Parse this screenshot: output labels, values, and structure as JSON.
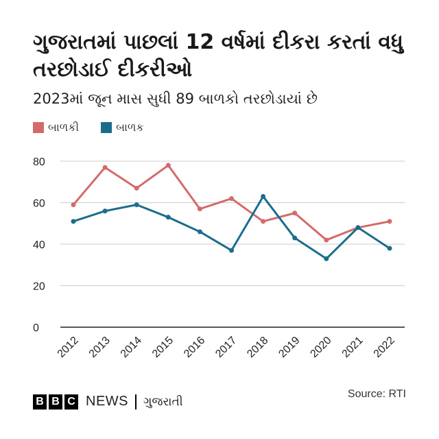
{
  "header": {
    "title": "ગુજરાતમાં પાછલાં 12 વર્ષમાં દીકરા કરતાં વધુ તરછોડાઈ દીકરીઓ",
    "subtitle": "2023માં જૂન માસ સુધી 89 બાળકો તરછોડાયાં છે"
  },
  "footer": {
    "bbc_letters": [
      "B",
      "B",
      "C"
    ],
    "news": "NEWS",
    "language": "ગુજરાતી",
    "source": "Source: RTI"
  },
  "colors": {
    "girls": "#d36b69",
    "boys": "#1b6d8c",
    "grid": "#cccccc",
    "baseline": "#222222"
  },
  "chart_data": {
    "type": "line",
    "x": [
      "2012",
      "2013",
      "2014",
      "2015",
      "2016",
      "2017",
      "2018",
      "2019",
      "2020",
      "2021",
      "2022"
    ],
    "series": [
      {
        "name": "બાળકી",
        "color": "#d36b69",
        "values": [
          59,
          77,
          67,
          78,
          57,
          62,
          51,
          55,
          42,
          48,
          51
        ]
      },
      {
        "name": "બાળક",
        "color": "#1b6d8c",
        "values": [
          51,
          56,
          59,
          53,
          46,
          37,
          63,
          43,
          33,
          48,
          38
        ]
      }
    ],
    "yticks": [
      0,
      20,
      40,
      60,
      80
    ],
    "ylim": [
      0,
      80
    ],
    "grid": true,
    "legend_position": "top-left",
    "title": "ગુજરાતમાં પાછલાં 12 વર્ષમાં દીકરા કરતાં વધુ તરછોડાઈ દીકરીઓ",
    "subtitle": "2023માં જૂન માસ સુધી 89 બાળકો તરછોડાયાં છે",
    "xlabel": "",
    "ylabel": ""
  }
}
